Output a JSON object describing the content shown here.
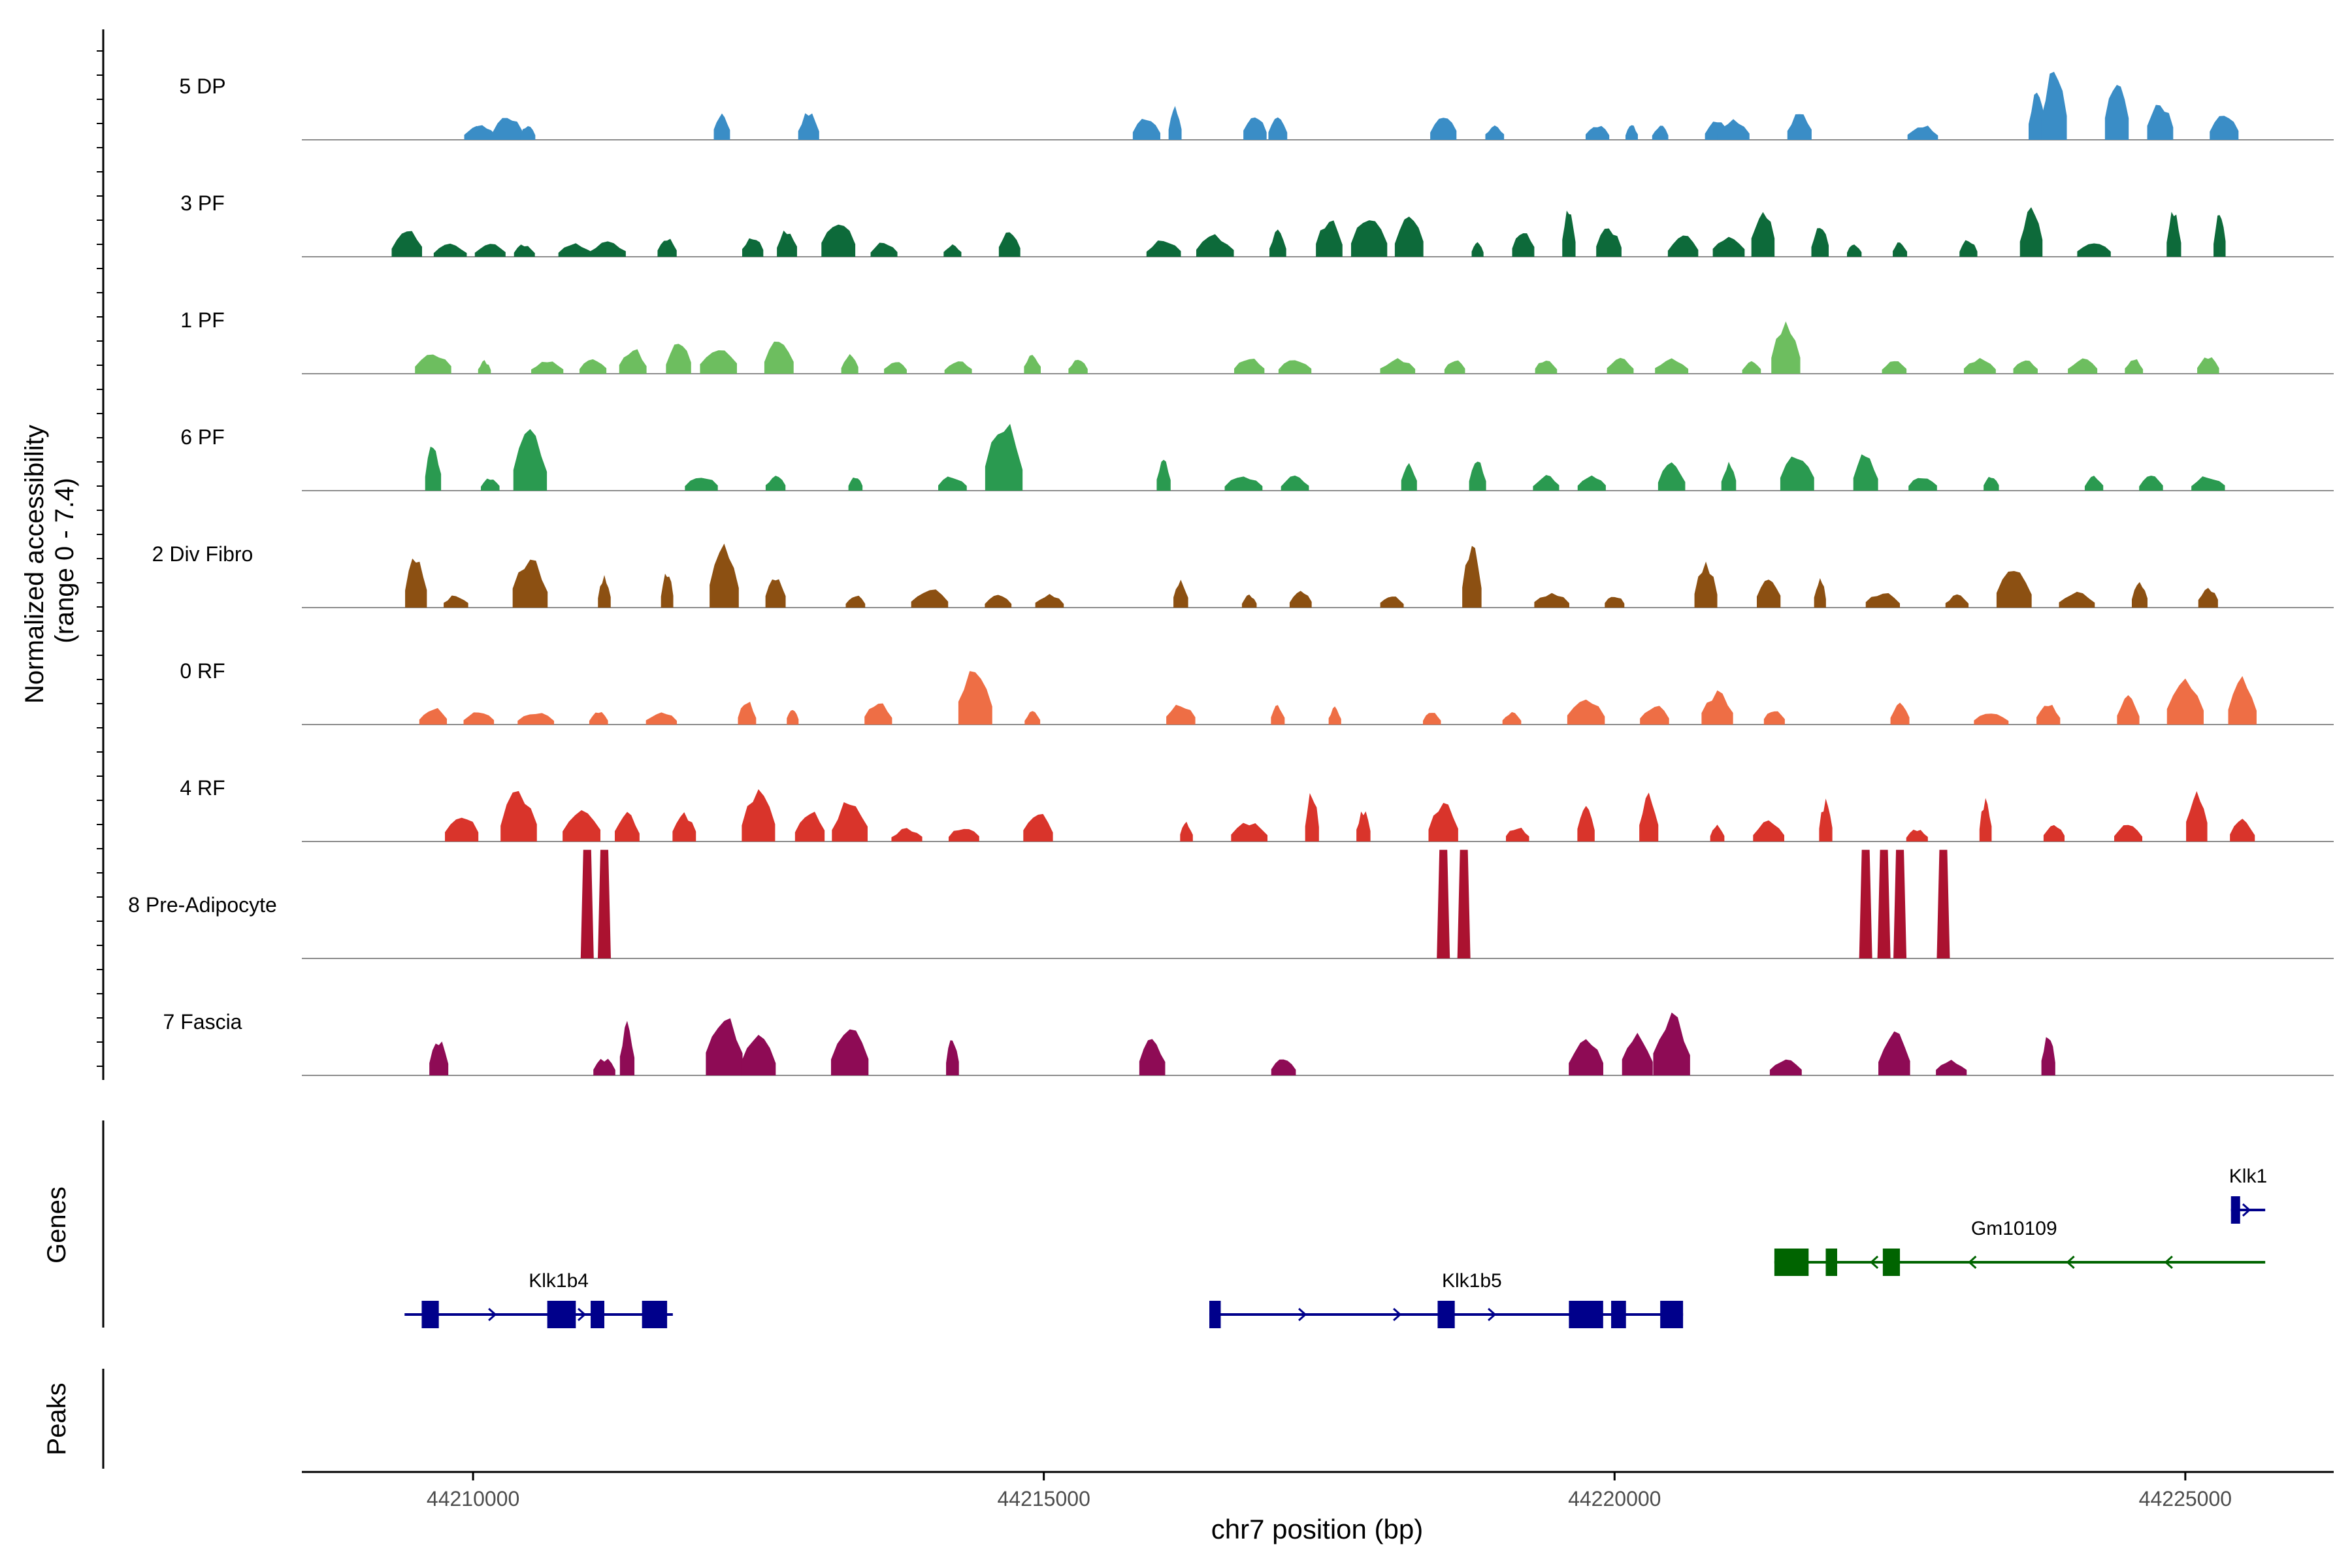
{
  "chart_data": {
    "type": "area",
    "title": "",
    "ylabel_line1": "Normalized accessibility",
    "ylabel_line2": "(range 0 - 7.4)",
    "ylim": [
      0,
      7.4
    ],
    "xlabel": "chr7 position (bp)",
    "xlim": [
      44208500,
      44226300
    ],
    "x_ticks": [
      44210000,
      44215000,
      44220000,
      44225000
    ],
    "x_tick_labels": [
      "44210000",
      "44215000",
      "44220000",
      "44225000"
    ],
    "genes_label": "Genes",
    "peaks_label": "Peaks",
    "tracks": [
      {
        "name": "5 DP",
        "color": "#3a8dc6",
        "peaks": [
          [
            44210030,
            0.14
          ],
          [
            44210080,
            0.14
          ],
          [
            44210300,
            0.24
          ],
          [
            44210480,
            0.14
          ],
          [
            44212180,
            0.26
          ],
          [
            44212940,
            0.26
          ],
          [
            44215900,
            0.22
          ],
          [
            44216150,
            0.3
          ],
          [
            44216850,
            0.24
          ],
          [
            44217050,
            0.2
          ],
          [
            44218500,
            0.24
          ],
          [
            44218950,
            0.14
          ],
          [
            44219850,
            0.14
          ],
          [
            44220150,
            0.14
          ],
          [
            44220400,
            0.14
          ],
          [
            44220900,
            0.2
          ],
          [
            44221040,
            0.2
          ],
          [
            44221620,
            0.26
          ],
          [
            44222700,
            0.14
          ],
          [
            44223700,
            0.48
          ],
          [
            44223850,
            0.65
          ],
          [
            44224400,
            0.55
          ],
          [
            44224780,
            0.35
          ],
          [
            44225340,
            0.24
          ]
        ]
      },
      {
        "name": "3 PF",
        "color": "#0d6a3a",
        "peaks": [
          [
            44209420,
            0.26
          ],
          [
            44209800,
            0.12
          ],
          [
            44210150,
            0.12
          ],
          [
            44210450,
            0.12
          ],
          [
            44210900,
            0.12
          ],
          [
            44211180,
            0.14
          ],
          [
            44211700,
            0.18
          ],
          [
            44212450,
            0.2
          ],
          [
            44212750,
            0.26
          ],
          [
            44213200,
            0.36
          ],
          [
            44213600,
            0.14
          ],
          [
            44214200,
            0.12
          ],
          [
            44214700,
            0.26
          ],
          [
            44216050,
            0.16
          ],
          [
            44216500,
            0.2
          ],
          [
            44217050,
            0.24
          ],
          [
            44217500,
            0.36
          ],
          [
            44217850,
            0.38
          ],
          [
            44218200,
            0.4
          ],
          [
            44218800,
            0.14
          ],
          [
            44219200,
            0.26
          ],
          [
            44219600,
            0.46
          ],
          [
            44219950,
            0.28
          ],
          [
            44220600,
            0.2
          ],
          [
            44221000,
            0.2
          ],
          [
            44221300,
            0.46
          ],
          [
            44221800,
            0.3
          ],
          [
            44222100,
            0.12
          ],
          [
            44222500,
            0.14
          ],
          [
            44223100,
            0.16
          ],
          [
            44223650,
            0.45
          ],
          [
            44224200,
            0.14
          ],
          [
            44224900,
            0.45
          ],
          [
            44225300,
            0.4
          ]
        ]
      },
      {
        "name": "1 PF",
        "color": "#6dbe5f",
        "peaks": [
          [
            44209650,
            0.2
          ],
          [
            44210100,
            0.12
          ],
          [
            44210650,
            0.12
          ],
          [
            44211050,
            0.14
          ],
          [
            44211400,
            0.24
          ],
          [
            44211800,
            0.3
          ],
          [
            44212150,
            0.26
          ],
          [
            44212680,
            0.36
          ],
          [
            44213300,
            0.18
          ],
          [
            44213700,
            0.12
          ],
          [
            44214250,
            0.12
          ],
          [
            44214900,
            0.18
          ],
          [
            44215300,
            0.14
          ],
          [
            44216800,
            0.16
          ],
          [
            44217200,
            0.14
          ],
          [
            44218100,
            0.14
          ],
          [
            44218600,
            0.14
          ],
          [
            44219400,
            0.14
          ],
          [
            44220050,
            0.14
          ],
          [
            44220500,
            0.14
          ],
          [
            44221200,
            0.12
          ],
          [
            44221500,
            0.46
          ],
          [
            44222450,
            0.12
          ],
          [
            44223200,
            0.14
          ],
          [
            44223600,
            0.14
          ],
          [
            44224100,
            0.14
          ],
          [
            44224550,
            0.14
          ],
          [
            44225200,
            0.16
          ]
        ]
      },
      {
        "name": "6 PF",
        "color": "#2a9a50",
        "peaks": [
          [
            44209650,
            0.45
          ],
          [
            44210150,
            0.12
          ],
          [
            44210500,
            0.55
          ],
          [
            44212000,
            0.14
          ],
          [
            44212650,
            0.14
          ],
          [
            44213350,
            0.14
          ],
          [
            44214200,
            0.14
          ],
          [
            44214650,
            0.65
          ],
          [
            44216050,
            0.3
          ],
          [
            44216750,
            0.14
          ],
          [
            44217200,
            0.14
          ],
          [
            44218200,
            0.26
          ],
          [
            44218800,
            0.28
          ],
          [
            44219400,
            0.14
          ],
          [
            44219800,
            0.14
          ],
          [
            44220500,
            0.26
          ],
          [
            44221000,
            0.26
          ],
          [
            44221600,
            0.35
          ],
          [
            44222200,
            0.35
          ],
          [
            44222700,
            0.14
          ],
          [
            44223300,
            0.14
          ],
          [
            44224200,
            0.14
          ],
          [
            44224700,
            0.14
          ],
          [
            44225200,
            0.14
          ]
        ]
      },
      {
        "name": "2 Div Fibro",
        "color": "#8c5012",
        "peaks": [
          [
            44209500,
            0.48
          ],
          [
            44209850,
            0.12
          ],
          [
            44210500,
            0.48
          ],
          [
            44211150,
            0.3
          ],
          [
            44211700,
            0.34
          ],
          [
            44212200,
            0.6
          ],
          [
            44212650,
            0.3
          ],
          [
            44213350,
            0.12
          ],
          [
            44214000,
            0.18
          ],
          [
            44214600,
            0.12
          ],
          [
            44215050,
            0.12
          ],
          [
            44216200,
            0.26
          ],
          [
            44216800,
            0.12
          ],
          [
            44217250,
            0.16
          ],
          [
            44218050,
            0.12
          ],
          [
            44218750,
            0.58
          ],
          [
            44219450,
            0.14
          ],
          [
            44220000,
            0.12
          ],
          [
            44220800,
            0.42
          ],
          [
            44221350,
            0.3
          ],
          [
            44221800,
            0.28
          ],
          [
            44222350,
            0.14
          ],
          [
            44223000,
            0.12
          ],
          [
            44223500,
            0.38
          ],
          [
            44224050,
            0.14
          ],
          [
            44224600,
            0.24
          ],
          [
            44225200,
            0.2
          ]
        ]
      },
      {
        "name": "0 RF",
        "color": "#ee6e45",
        "peaks": [
          [
            44209650,
            0.16
          ],
          [
            44210050,
            0.12
          ],
          [
            44210550,
            0.12
          ],
          [
            44211100,
            0.12
          ],
          [
            44211650,
            0.12
          ],
          [
            44212400,
            0.22
          ],
          [
            44212800,
            0.16
          ],
          [
            44213550,
            0.22
          ],
          [
            44214400,
            0.58
          ],
          [
            44214900,
            0.12
          ],
          [
            44216200,
            0.2
          ],
          [
            44217050,
            0.18
          ],
          [
            44217550,
            0.16
          ],
          [
            44218400,
            0.12
          ],
          [
            44219100,
            0.12
          ],
          [
            44219750,
            0.24
          ],
          [
            44220350,
            0.18
          ],
          [
            44220900,
            0.3
          ],
          [
            44221400,
            0.14
          ],
          [
            44222500,
            0.22
          ],
          [
            44223300,
            0.12
          ],
          [
            44223800,
            0.2
          ],
          [
            44224500,
            0.26
          ],
          [
            44225000,
            0.45
          ],
          [
            44225500,
            0.45
          ]
        ]
      },
      {
        "name": "4 RF",
        "color": "#d9342b",
        "peaks": [
          [
            44209900,
            0.26
          ],
          [
            44210400,
            0.48
          ],
          [
            44210950,
            0.3
          ],
          [
            44211350,
            0.26
          ],
          [
            44211850,
            0.26
          ],
          [
            44212500,
            0.46
          ],
          [
            44212950,
            0.3
          ],
          [
            44213300,
            0.38
          ],
          [
            44213800,
            0.12
          ],
          [
            44214300,
            0.14
          ],
          [
            44214950,
            0.28
          ],
          [
            44216250,
            0.18
          ],
          [
            44216800,
            0.18
          ],
          [
            44217350,
            0.48
          ],
          [
            44217800,
            0.3
          ],
          [
            44218500,
            0.38
          ],
          [
            44219150,
            0.14
          ],
          [
            44219750,
            0.32
          ],
          [
            44220300,
            0.46
          ],
          [
            44220900,
            0.16
          ],
          [
            44221350,
            0.2
          ],
          [
            44221850,
            0.38
          ],
          [
            44222650,
            0.12
          ],
          [
            44223250,
            0.4
          ],
          [
            44223850,
            0.16
          ],
          [
            44224500,
            0.16
          ],
          [
            44225100,
            0.5
          ],
          [
            44225500,
            0.2
          ]
        ]
      },
      {
        "name": "8 Pre-Adipocyte",
        "color": "#ab1230",
        "peaks": [
          [
            44211000,
            0.95
          ],
          [
            44211150,
            0.95
          ],
          [
            44218500,
            0.95
          ],
          [
            44218680,
            0.95
          ],
          [
            44222200,
            0.95
          ],
          [
            44222360,
            0.95
          ],
          [
            44222500,
            0.95
          ],
          [
            44222880,
            0.95
          ]
        ]
      },
      {
        "name": "7 Fascia",
        "color": "#8e0b55",
        "peaks": [
          [
            44209700,
            0.34
          ],
          [
            44211150,
            0.16
          ],
          [
            44211350,
            0.5
          ],
          [
            44212200,
            0.6
          ],
          [
            44212500,
            0.38
          ],
          [
            44213300,
            0.5
          ],
          [
            44214200,
            0.38
          ],
          [
            44215950,
            0.36
          ],
          [
            44217100,
            0.16
          ],
          [
            44219750,
            0.36
          ],
          [
            44220200,
            0.4
          ],
          [
            44220500,
            0.56
          ],
          [
            44221500,
            0.16
          ],
          [
            44222450,
            0.42
          ],
          [
            44222950,
            0.14
          ],
          [
            44223800,
            0.38
          ]
        ]
      }
    ],
    "genes": [
      {
        "name": "Klk1b4",
        "strand": "+",
        "color": "#00008b",
        "row": 2,
        "start": 44209400,
        "end": 44211750,
        "exons": [
          [
            44209550,
            44209700
          ],
          [
            44210650,
            44210900
          ],
          [
            44211030,
            44211150
          ],
          [
            44211480,
            44211700
          ]
        ],
        "label_x": 44210750
      },
      {
        "name": "Klk1b5",
        "strand": "+",
        "color": "#00008b",
        "row": 2,
        "start": 44216450,
        "end": 44220600,
        "exons": [
          [
            44216450,
            44216550
          ],
          [
            44218450,
            44218600
          ],
          [
            44219600,
            44219900
          ],
          [
            44219970,
            44220100
          ],
          [
            44220400,
            44220600
          ]
        ],
        "label_x": 44218750
      },
      {
        "name": "Gm10109",
        "strand": "-",
        "color": "#006400",
        "row": 1,
        "start": 44221400,
        "end": 44225700,
        "exons": [
          [
            44221400,
            44221700
          ],
          [
            44221850,
            44221950
          ],
          [
            44222350,
            44222500
          ]
        ],
        "label_x": 44223500
      },
      {
        "name": "Klk1",
        "strand": "+",
        "color": "#00008b",
        "row": 0,
        "start": 44225400,
        "end": 44225700,
        "exons": [
          [
            44225400,
            44225480
          ]
        ],
        "label_x": 44225550
      }
    ]
  }
}
